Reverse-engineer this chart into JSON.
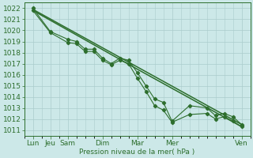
{
  "title": "Pression niveau de la mer( hPa )",
  "bg_color": "#cce8e8",
  "grid_color": "#aacccc",
  "line_color": "#2d6e2d",
  "ylim": [
    1010.5,
    1022.5
  ],
  "yticks": [
    1011,
    1012,
    1013,
    1014,
    1015,
    1016,
    1017,
    1018,
    1019,
    1020,
    1021,
    1022
  ],
  "xlim": [
    0,
    13
  ],
  "xtick_positions": [
    0.5,
    1.5,
    2.5,
    4.5,
    6.5,
    8.5,
    12.5
  ],
  "xtick_labels": [
    "Lun",
    "Jeu",
    "Sam",
    "Dim",
    "Mar",
    "Mer",
    "Ven"
  ],
  "x_minor_step": 0.5,
  "fontsize": 6.5,
  "line_width": 0.8,
  "marker_size": 2.2,
  "trend1_x": [
    0.5,
    12.5
  ],
  "trend1_y": [
    1021.9,
    1011.5
  ],
  "trend2_x": [
    0.5,
    6.5,
    12.5
  ],
  "trend2_y": [
    1021.8,
    1016.5,
    1011.3
  ],
  "zigzag1_x": [
    0.5,
    1.5,
    2.5,
    3.0,
    3.5,
    4.0,
    4.5,
    5.0,
    5.5,
    6.0,
    6.5,
    7.0,
    7.5,
    8.0,
    8.5,
    9.5,
    10.5,
    11.0,
    11.5,
    12.0,
    12.5
  ],
  "zigzag1_y": [
    1022.0,
    1019.9,
    1019.2,
    1019.0,
    1018.3,
    1018.3,
    1017.5,
    1017.0,
    1017.5,
    1017.3,
    1016.2,
    1015.0,
    1013.8,
    1013.5,
    1011.8,
    1013.2,
    1013.0,
    1012.3,
    1012.5,
    1012.2,
    1011.5
  ],
  "zigzag2_x": [
    0.5,
    1.5,
    2.5,
    3.0,
    3.5,
    4.0,
    4.5,
    5.0,
    5.5,
    6.0,
    6.5,
    7.0,
    7.5,
    8.0,
    8.5,
    9.5,
    10.5,
    11.0,
    11.5,
    12.0,
    12.5
  ],
  "zigzag2_y": [
    1021.8,
    1019.8,
    1018.9,
    1018.8,
    1018.1,
    1018.1,
    1017.3,
    1016.9,
    1017.3,
    1017.0,
    1015.7,
    1014.5,
    1013.2,
    1012.8,
    1011.7,
    1012.4,
    1012.5,
    1012.0,
    1012.2,
    1011.8,
    1011.3
  ]
}
